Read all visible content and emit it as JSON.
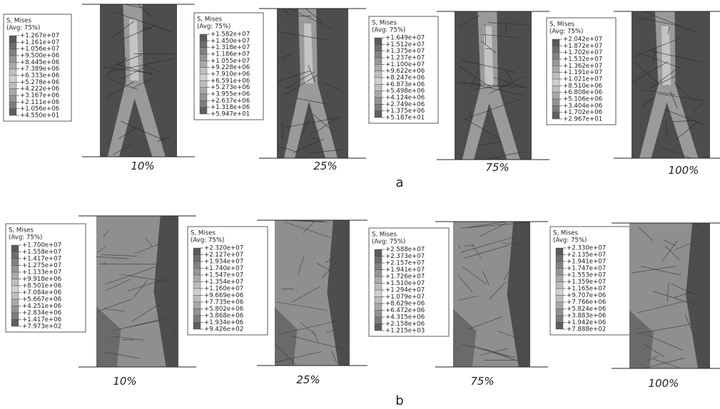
{
  "rows": [
    {
      "label": "a",
      "panels": [
        {
          "caption": "10%",
          "legend": {
            "title": "S, Mises",
            "subtitle": "(Avg: 75%)",
            "values": [
              "+1.267e+07",
              "+1.161e+07",
              "+1.056e+07",
              "+9.500e+06",
              "+8.445e+06",
              "+7.389e+06",
              "+6.333e+06",
              "+5.278e+06",
              "+4.222e+06",
              "+3.167e+06",
              "+2.111e+06",
              "+1.056e+06",
              "+4.550e+01"
            ]
          }
        },
        {
          "caption": "25%",
          "legend": {
            "title": "S, Mises",
            "subtitle": "(Avg: 75%)",
            "values": [
              "+1.582e+07",
              "+1.450e+07",
              "+1.318e+07",
              "+1.186e+07",
              "+1.055e+07",
              "+9.228e+06",
              "+7.910e+06",
              "+6.591e+06",
              "+5.273e+06",
              "+3.955e+06",
              "+2.637e+06",
              "+1.318e+06",
              "+5.947e+01"
            ]
          }
        },
        {
          "caption": "75%",
          "legend": {
            "title": "S, Mises",
            "subtitle": "(Avg: 75%)",
            "values": [
              "+1.649e+07",
              "+1.512e+07",
              "+1.375e+07",
              "+1.237e+07",
              "+1.100e+07",
              "+9.622e+06",
              "+8.247e+06",
              "+6.873e+06",
              "+5.498e+06",
              "+4.124e+06",
              "+2.749e+06",
              "+1.375e+06",
              "+5.187e+01"
            ]
          }
        },
        {
          "caption": "100%",
          "legend": {
            "title": "S, Mises",
            "subtitle": "(Avg: 75%)",
            "values": [
              "+2.042e+07",
              "+1.872e+07",
              "+1.702e+07",
              "+1.532e+07",
              "+1.362e+07",
              "+1.191e+07",
              "+1.021e+07",
              "+8.510e+06",
              "+6.808e+06",
              "+5.106e+06",
              "+3.404e+06",
              "+1.702e+06",
              "+2.967e+01"
            ]
          }
        }
      ]
    },
    {
      "label": "b",
      "panels": [
        {
          "caption": "10%",
          "legend": {
            "title": "S, Mises",
            "subtitle": "(Avg: 75%)",
            "values": [
              "+1.700e+07",
              "+1.558e+07",
              "+1.417e+07",
              "+1.275e+07",
              "+1.133e+07",
              "+9.918e+06",
              "+8.501e+06",
              "+7.084e+06",
              "+5.667e+06",
              "+4.251e+06",
              "+2.834e+06",
              "+1.417e+06",
              "+7.973e+02"
            ]
          }
        },
        {
          "caption": "25%",
          "legend": {
            "title": "S, Mises",
            "subtitle": "(Avg: 75%)",
            "values": [
              "+2.320e+07",
              "+2.127e+07",
              "+1.934e+07",
              "+1.740e+07",
              "+1.547e+07",
              "+1.354e+07",
              "+1.160e+07",
              "+9.669e+06",
              "+7.735e+06",
              "+5.802e+06",
              "+3.868e+06",
              "+1.934e+06",
              "+9.426e+02"
            ]
          }
        },
        {
          "caption": "75%",
          "legend": {
            "title": "S, Mises",
            "subtitle": "(Avg: 75%)",
            "values": [
              "+2.588e+07",
              "+2.373e+07",
              "+2.157e+07",
              "+1.941e+07",
              "+1.726e+07",
              "+1.510e+07",
              "+1.294e+07",
              "+1.079e+07",
              "+8.629e+06",
              "+6.472e+06",
              "+4.315e+06",
              "+2.158e+06",
              "+1.215e+03"
            ]
          }
        },
        {
          "caption": "100%",
          "legend": {
            "title": "S, Mises",
            "subtitle": "(Avg: 75%)",
            "values": [
              "+2.330e+07",
              "+2.135e+07",
              "+1.941e+07",
              "+1.747e+07",
              "+1.553e+07",
              "+1.359e+07",
              "+1.165e+07",
              "+9.707e+06",
              "+7.766e+06",
              "+5.824e+06",
              "+3.883e+06",
              "+1.942e+06",
              "+7.888e+02"
            ]
          }
        }
      ]
    }
  ]
}
